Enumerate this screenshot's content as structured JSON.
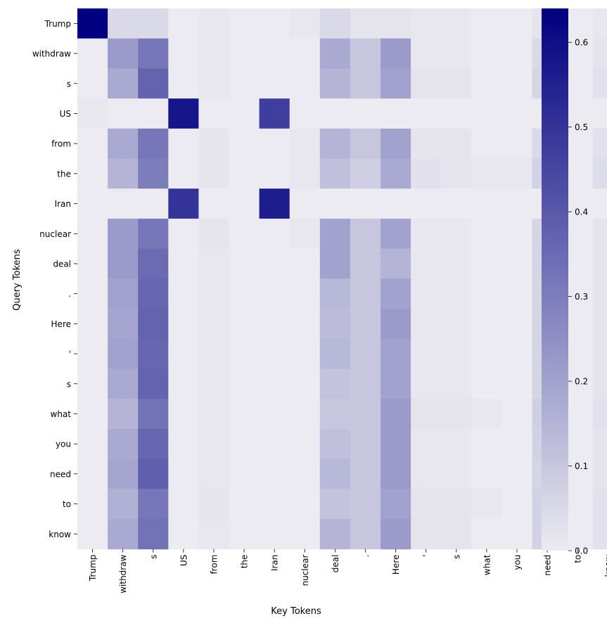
{
  "chart_data": {
    "type": "heatmap",
    "title": "",
    "xlabel": "Key Tokens",
    "ylabel": "Query Tokens",
    "x_tokens": [
      "Trump",
      "withdraw",
      "s",
      "US",
      "from",
      "the",
      "Iran",
      "nuclear",
      "deal",
      ".",
      "Here",
      "'",
      "s",
      "what",
      "you",
      "need",
      "to",
      "know"
    ],
    "y_tokens": [
      "Trump",
      "withdraw",
      "s",
      "US",
      "from",
      "the",
      "Iran",
      "nuclear",
      "deal",
      ".",
      "Here",
      "'",
      "s",
      "what",
      "you",
      "need",
      "to",
      "know"
    ],
    "values": [
      [
        0.64,
        0.05,
        0.05,
        0.0,
        0.01,
        0.0,
        0.0,
        0.01,
        0.05,
        0.02,
        0.02,
        0.01,
        0.01,
        0.0,
        0.0,
        0.02,
        0.0,
        0.01
      ],
      [
        0.0,
        0.22,
        0.32,
        0.0,
        0.01,
        0.0,
        0.0,
        0.0,
        0.18,
        0.1,
        0.22,
        0.01,
        0.01,
        0.0,
        0.0,
        0.05,
        0.0,
        0.02
      ],
      [
        0.0,
        0.18,
        0.37,
        0.0,
        0.01,
        0.0,
        0.0,
        0.0,
        0.15,
        0.1,
        0.2,
        0.02,
        0.02,
        0.0,
        0.0,
        0.06,
        0.0,
        0.03
      ],
      [
        0.01,
        0.0,
        0.0,
        0.58,
        0.0,
        0.0,
        0.47,
        0.0,
        0.0,
        0.0,
        0.0,
        0.0,
        0.0,
        0.0,
        0.0,
        0.0,
        0.0,
        0.0
      ],
      [
        0.0,
        0.18,
        0.32,
        0.0,
        0.02,
        0.0,
        0.0,
        0.01,
        0.15,
        0.1,
        0.2,
        0.02,
        0.02,
        0.0,
        0.0,
        0.05,
        0.0,
        0.03
      ],
      [
        0.0,
        0.15,
        0.3,
        0.0,
        0.02,
        0.0,
        0.0,
        0.01,
        0.12,
        0.08,
        0.18,
        0.03,
        0.02,
        0.01,
        0.01,
        0.07,
        0.0,
        0.04
      ],
      [
        0.0,
        0.0,
        0.0,
        0.5,
        0.0,
        0.0,
        0.56,
        0.0,
        0.0,
        0.0,
        0.0,
        0.0,
        0.0,
        0.0,
        0.0,
        0.0,
        0.0,
        0.0
      ],
      [
        0.0,
        0.22,
        0.32,
        0.0,
        0.02,
        0.0,
        0.0,
        0.01,
        0.2,
        0.1,
        0.2,
        0.01,
        0.01,
        0.0,
        0.0,
        0.06,
        0.0,
        0.02
      ],
      [
        0.0,
        0.22,
        0.35,
        0.0,
        0.01,
        0.0,
        0.0,
        0.0,
        0.2,
        0.1,
        0.15,
        0.01,
        0.01,
        0.0,
        0.0,
        0.06,
        0.0,
        0.02
      ],
      [
        0.0,
        0.2,
        0.36,
        0.0,
        0.01,
        0.0,
        0.0,
        0.0,
        0.14,
        0.1,
        0.2,
        0.01,
        0.01,
        0.0,
        0.0,
        0.06,
        0.0,
        0.02
      ],
      [
        0.0,
        0.19,
        0.37,
        0.0,
        0.01,
        0.0,
        0.0,
        0.0,
        0.13,
        0.1,
        0.22,
        0.01,
        0.01,
        0.0,
        0.0,
        0.06,
        0.0,
        0.02
      ],
      [
        0.0,
        0.2,
        0.36,
        0.0,
        0.01,
        0.0,
        0.0,
        0.0,
        0.14,
        0.1,
        0.2,
        0.01,
        0.01,
        0.0,
        0.0,
        0.06,
        0.0,
        0.02
      ],
      [
        0.0,
        0.18,
        0.37,
        0.0,
        0.01,
        0.0,
        0.0,
        0.0,
        0.11,
        0.1,
        0.2,
        0.01,
        0.01,
        0.0,
        0.0,
        0.06,
        0.0,
        0.02
      ],
      [
        0.0,
        0.15,
        0.33,
        0.0,
        0.01,
        0.0,
        0.0,
        0.0,
        0.1,
        0.1,
        0.22,
        0.02,
        0.02,
        0.01,
        0.0,
        0.08,
        0.0,
        0.03
      ],
      [
        0.0,
        0.18,
        0.36,
        0.0,
        0.01,
        0.0,
        0.0,
        0.0,
        0.12,
        0.1,
        0.22,
        0.01,
        0.01,
        0.0,
        0.0,
        0.07,
        0.0,
        0.02
      ],
      [
        0.0,
        0.19,
        0.38,
        0.0,
        0.01,
        0.0,
        0.0,
        0.0,
        0.14,
        0.1,
        0.22,
        0.01,
        0.01,
        0.0,
        0.0,
        0.06,
        0.0,
        0.02
      ],
      [
        0.0,
        0.16,
        0.32,
        0.0,
        0.02,
        0.0,
        0.0,
        0.0,
        0.11,
        0.1,
        0.2,
        0.02,
        0.02,
        0.01,
        0.0,
        0.07,
        0.0,
        0.03
      ],
      [
        0.0,
        0.18,
        0.33,
        0.0,
        0.01,
        0.0,
        0.0,
        0.0,
        0.15,
        0.1,
        0.22,
        0.02,
        0.02,
        0.0,
        0.0,
        0.07,
        0.0,
        0.03
      ]
    ],
    "vmin": 0.0,
    "vmax": 0.64,
    "colorbar_ticks": [
      0.0,
      0.1,
      0.2,
      0.3,
      0.4,
      0.5,
      0.6
    ],
    "colorbar_tick_labels": [
      "0.0",
      "0.1",
      "0.2",
      "0.3",
      "0.4",
      "0.5",
      "0.6"
    ],
    "color_low": "#ecebf1",
    "color_high": "#000080",
    "grid": false,
    "legend": "colorbar-right"
  }
}
